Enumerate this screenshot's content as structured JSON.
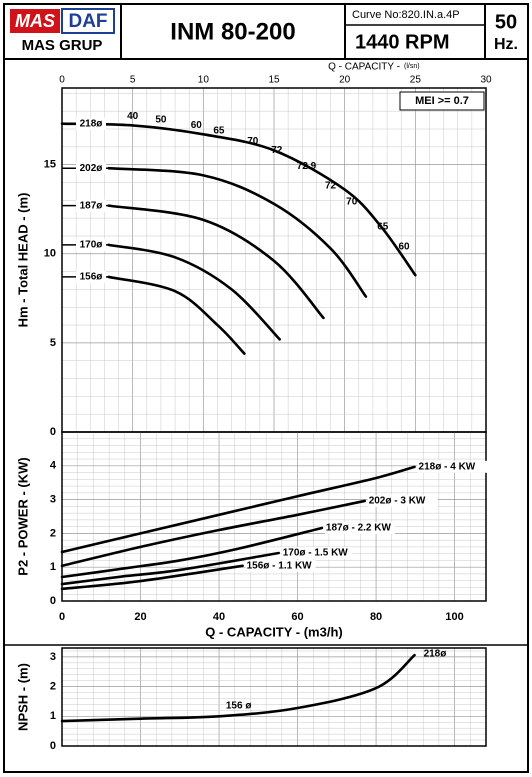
{
  "header": {
    "brand_left": "MAS",
    "brand_right": "DAF",
    "brand_bottom": "MAS GRUP",
    "title": "INM 80-200",
    "curve_no": "Curve No:820.IN.a.4P",
    "rpm": "1440 RPM",
    "hz_value": "50",
    "hz_unit": "Hz."
  },
  "chart_data": [
    {
      "type": "line",
      "y_label": "Hm - Total HEAD - (m)",
      "x_label": "Q - CAPACITY -",
      "x_unit": "(l/sn)",
      "badge": "MEI >= 0.7",
      "xlim": [
        0,
        30
      ],
      "xticks": [
        0,
        5,
        10,
        15,
        20,
        25,
        30
      ],
      "ylim": [
        0,
        19.3
      ],
      "yticks": [
        0,
        5,
        10,
        15
      ],
      "grid": true,
      "color": "#000000",
      "series": [
        {
          "name": "218ø",
          "x": [
            0,
            5,
            10,
            15,
            20,
            22.6,
            25
          ],
          "values": [
            17.3,
            17.2,
            16.7,
            15.8,
            13.6,
            11.5,
            8.8
          ]
        },
        {
          "name": "202ø",
          "x": [
            3.3,
            10,
            15,
            19,
            21.5
          ],
          "values": [
            14.8,
            14.4,
            12.8,
            10.3,
            7.6
          ]
        },
        {
          "name": "187ø",
          "x": [
            3.3,
            10,
            15,
            18.5
          ],
          "values": [
            12.7,
            11.9,
            9.6,
            6.4
          ]
        },
        {
          "name": "170ø",
          "x": [
            3.3,
            8,
            12,
            15.4
          ],
          "values": [
            10.5,
            9.8,
            8.0,
            5.2
          ]
        },
        {
          "name": "156ø",
          "x": [
            3.3,
            8,
            11,
            12.9
          ],
          "values": [
            8.7,
            7.9,
            6.0,
            4.4
          ]
        }
      ],
      "efficiency_labels": [
        {
          "value": 40,
          "x": 5.0,
          "y": 17.7
        },
        {
          "value": 50,
          "x": 7.0,
          "y": 17.5
        },
        {
          "value": 60,
          "x": 9.5,
          "y": 17.2
        },
        {
          "value": 65,
          "x": 11.1,
          "y": 16.9
        },
        {
          "value": 70,
          "x": 13.5,
          "y": 16.3
        },
        {
          "value": 72,
          "x": 15.2,
          "y": 15.8
        },
        {
          "value": 72.9,
          "x": 17.3,
          "y": 14.9
        },
        {
          "value": 72,
          "x": 19.0,
          "y": 13.8
        },
        {
          "value": 70,
          "x": 20.5,
          "y": 12.9
        },
        {
          "value": 65,
          "x": 22.7,
          "y": 11.5
        },
        {
          "value": 60,
          "x": 24.2,
          "y": 10.4
        }
      ]
    },
    {
      "type": "line",
      "y_label": "P2 - POWER - (KW)",
      "x_label": "Q - CAPACITY - (m3/h)",
      "xlim": [
        0,
        108
      ],
      "xticks": [
        0,
        20,
        40,
        60,
        80,
        100
      ],
      "ylim": [
        0,
        5
      ],
      "yticks": [
        0,
        1,
        2,
        3,
        4
      ],
      "grid": true,
      "color": "#000000",
      "series": [
        {
          "name": "218ø - 4 KW",
          "x": [
            0,
            20,
            40,
            60,
            80,
            89.8
          ],
          "values": [
            1.45,
            2.0,
            2.55,
            3.1,
            3.64,
            3.97
          ]
        },
        {
          "name": "202ø - 3 KW",
          "x": [
            0,
            20,
            40,
            60,
            77.1
          ],
          "values": [
            1.04,
            1.6,
            2.1,
            2.55,
            2.96
          ]
        },
        {
          "name": "187ø - 2.2 KW",
          "x": [
            0,
            15,
            30,
            45,
            66.2
          ],
          "values": [
            0.71,
            0.95,
            1.2,
            1.55,
            2.16
          ]
        },
        {
          "name": "170ø - 1.5 KW",
          "x": [
            0,
            15,
            30,
            55.2
          ],
          "values": [
            0.5,
            0.72,
            0.92,
            1.42
          ]
        },
        {
          "name": "156ø - 1.1 KW",
          "x": [
            0,
            20,
            46
          ],
          "values": [
            0.36,
            0.59,
            1.04
          ]
        }
      ]
    },
    {
      "type": "line",
      "y_label": "NPSH - (m)",
      "xlim": [
        0,
        108
      ],
      "ylim": [
        0,
        3.3
      ],
      "yticks": [
        0,
        1,
        2,
        3
      ],
      "grid": true,
      "color": "#000000",
      "series": [
        {
          "x": [
            0,
            20,
            40,
            60,
            80,
            89.8
          ],
          "values": [
            0.84,
            0.92,
            1.0,
            1.28,
            1.95,
            3.06
          ]
        }
      ],
      "annotations": [
        {
          "text": "156 ø",
          "x": 45,
          "y": 1.35
        },
        {
          "text": "218ø",
          "x": 95,
          "y": 3.1
        }
      ]
    }
  ]
}
